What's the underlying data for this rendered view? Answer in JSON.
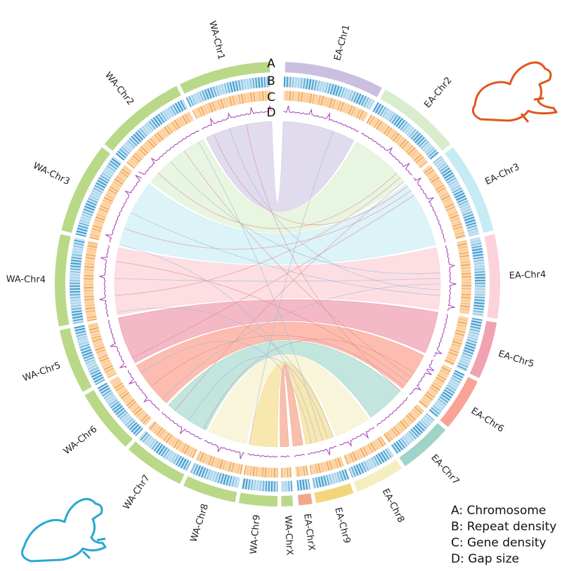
{
  "tracks": [
    "A",
    "B",
    "C",
    "D"
  ],
  "chromosomes": {
    "ea": [
      "EA-Chr1",
      "EA-Chr2",
      "EA-Chr3",
      "EA-Chr4",
      "EA-Chr5",
      "EA-Chr6",
      "EA-Chr7",
      "EA-Chr8",
      "EA-Chr9",
      "EA-ChrX"
    ],
    "wa": [
      "WA-ChrX",
      "WA-Chr9",
      "WA-Chr8",
      "WA-Chr7",
      "WA-Chr6",
      "WA-Chr5",
      "WA-Chr4",
      "WA-Chr3",
      "WA-Chr2",
      "WA-Chr1"
    ]
  },
  "legend": [
    "A: Chromosome",
    "B: Repeat density",
    "C: Gene density",
    "D: Gap size"
  ]
}
